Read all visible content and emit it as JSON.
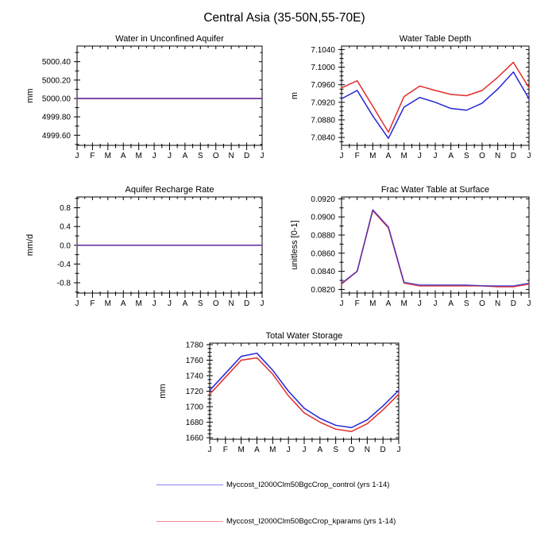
{
  "title": "Central Asia (35-50N,55-70E)",
  "colors": {
    "control": "#2424d8",
    "kparams": "#e32c2c",
    "axis": "#000000"
  },
  "legend": {
    "position": "bottom",
    "items": [
      {
        "label": "Myccost_I2000Clm50BgcCrop_control (yrs 1-14)",
        "color_key": "control"
      },
      {
        "label": "Myccost_I2000Clm50BgcCrop_kparams (yrs 1-14)",
        "color_key": "kparams"
      }
    ]
  },
  "chart_data": [
    {
      "type": "line",
      "title": "Water in Unconfined Aquifer",
      "ylabel": "mm",
      "x_categories": [
        "J",
        "F",
        "M",
        "A",
        "M",
        "J",
        "J",
        "A",
        "S",
        "O",
        "N",
        "D",
        "J"
      ],
      "ylim": [
        4999.49,
        5000.57
      ],
      "ytick_values": [
        4999.6,
        4999.8,
        5000.0,
        5000.2,
        5000.4
      ],
      "ytick_labels": [
        "4999.60",
        "4999.80",
        "5000.00",
        "5000.20",
        "5000.40"
      ],
      "yminor_step": 0.1,
      "grid": false,
      "blend": true,
      "series": [
        {
          "name": "control",
          "values": [
            5000.0,
            5000.0,
            5000.0,
            5000.0,
            5000.0,
            5000.0,
            5000.0,
            5000.0,
            5000.0,
            5000.0,
            5000.0,
            5000.0,
            5000.0
          ]
        },
        {
          "name": "kparams",
          "values": [
            5000.0,
            5000.0,
            5000.0,
            5000.0,
            5000.0,
            5000.0,
            5000.0,
            5000.0,
            5000.0,
            5000.0,
            5000.0,
            5000.0,
            5000.0
          ]
        }
      ]
    },
    {
      "type": "line",
      "title": "Water Table Depth",
      "ylabel": "m",
      "x_categories": [
        "J",
        "F",
        "M",
        "A",
        "M",
        "J",
        "J",
        "A",
        "S",
        "O",
        "N",
        "D",
        "J"
      ],
      "ylim": [
        7.0822,
        7.1048
      ],
      "ytick_values": [
        7.084,
        7.088,
        7.092,
        7.096,
        7.1,
        7.104
      ],
      "ytick_labels": [
        "7.0840",
        "7.0880",
        "7.0920",
        "7.0960",
        "7.1000",
        "7.1040"
      ],
      "yminor_step": 0.001,
      "grid": false,
      "blend": false,
      "series": [
        {
          "name": "control",
          "values": [
            7.0928,
            7.0947,
            7.0889,
            7.0838,
            7.0909,
            7.0931,
            7.092,
            7.0906,
            7.0902,
            7.0918,
            7.095,
            7.0989,
            7.0928
          ]
        },
        {
          "name": "kparams",
          "values": [
            7.0953,
            7.0969,
            7.0911,
            7.0852,
            7.0933,
            7.0957,
            7.0947,
            7.0938,
            7.0935,
            7.0947,
            7.0977,
            7.1011,
            7.0953
          ]
        }
      ]
    },
    {
      "type": "line",
      "title": "Aquifer Recharge Rate",
      "ylabel": "mm/d",
      "x_categories": [
        "J",
        "F",
        "M",
        "A",
        "M",
        "J",
        "J",
        "A",
        "S",
        "O",
        "N",
        "D",
        "J"
      ],
      "ylim": [
        -1.02,
        1.03
      ],
      "ytick_values": [
        -0.8,
        -0.4,
        0.0,
        0.4,
        0.8
      ],
      "ytick_labels": [
        "-0.8",
        "-0.4",
        "0.0",
        "0.4",
        "0.8"
      ],
      "yminor_step": 0.2,
      "grid": false,
      "blend": true,
      "series": [
        {
          "name": "control",
          "values": [
            0.0,
            0.0,
            0.0,
            0.0,
            0.0,
            0.0,
            0.0,
            0.0,
            0.0,
            0.0,
            0.0,
            0.0,
            0.0
          ]
        },
        {
          "name": "kparams",
          "values": [
            0.0,
            0.0,
            0.0,
            0.0,
            0.0,
            0.0,
            0.0,
            0.0,
            0.0,
            0.0,
            0.0,
            0.0,
            0.0
          ]
        }
      ]
    },
    {
      "type": "line",
      "title": "Frac Water Table at Surface",
      "ylabel": "unitless [0-1]",
      "x_categories": [
        "J",
        "F",
        "M",
        "A",
        "M",
        "J",
        "J",
        "A",
        "S",
        "O",
        "N",
        "D",
        "J"
      ],
      "ylim": [
        0.0816,
        0.0922
      ],
      "ytick_values": [
        0.082,
        0.084,
        0.086,
        0.088,
        0.09,
        0.092
      ],
      "ytick_labels": [
        "0.0820",
        "0.0840",
        "0.0860",
        "0.0880",
        "0.0900",
        "0.0920"
      ],
      "yminor_step": 0.001,
      "grid": false,
      "blend": true,
      "series": [
        {
          "name": "control",
          "values": [
            0.0827,
            0.084,
            0.0908,
            0.0889,
            0.0828,
            0.0825,
            0.0825,
            0.0825,
            0.0825,
            0.0824,
            0.0824,
            0.0824,
            0.0827
          ]
        },
        {
          "name": "kparams",
          "values": [
            0.0826,
            0.084,
            0.0907,
            0.0888,
            0.0827,
            0.0824,
            0.0824,
            0.0824,
            0.0824,
            0.0824,
            0.0823,
            0.0823,
            0.0826
          ]
        }
      ]
    },
    {
      "type": "line",
      "title": "Total Water Storage",
      "ylabel": "mm",
      "x_categories": [
        "J",
        "F",
        "M",
        "A",
        "M",
        "J",
        "J",
        "A",
        "S",
        "O",
        "N",
        "D",
        "J"
      ],
      "ylim": [
        1658,
        1782
      ],
      "ytick_values": [
        1660,
        1680,
        1700,
        1720,
        1740,
        1760,
        1780
      ],
      "ytick_labels": [
        "1660",
        "1680",
        "1700",
        "1720",
        "1740",
        "1760",
        "1780"
      ],
      "yminor_step": 5,
      "grid": false,
      "blend": false,
      "series": [
        {
          "name": "control",
          "values": [
            1721,
            1743,
            1765,
            1769,
            1747,
            1720,
            1698,
            1685,
            1676,
            1673,
            1683,
            1701,
            1721
          ]
        },
        {
          "name": "kparams",
          "values": [
            1716,
            1738,
            1760,
            1763,
            1742,
            1714,
            1692,
            1680,
            1671,
            1668,
            1678,
            1696,
            1716
          ]
        }
      ]
    }
  ]
}
